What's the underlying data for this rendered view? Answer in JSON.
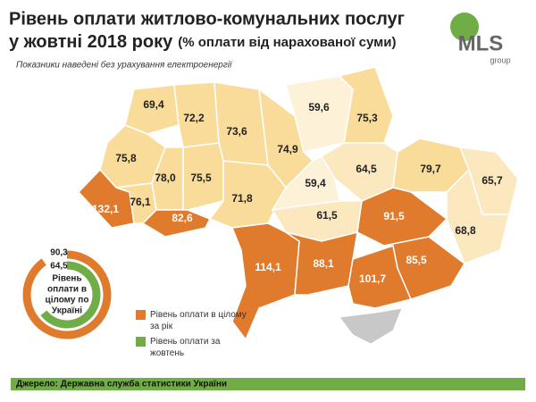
{
  "header": {
    "title_line1": "Рівень оплати житлово-комунальних послуг",
    "title_line2": "у жовтні 2018 року",
    "title_unit": "(% оплати від нарахованої суми)",
    "note": "Показники наведені без урахування електроенергії"
  },
  "logo": {
    "name": "MLS",
    "sub": "group"
  },
  "regions": [
    {
      "label": "69,4",
      "color": "#f9dc9a"
    },
    {
      "label": "72,2",
      "color": "#f9dc9a"
    },
    {
      "label": "73,6",
      "color": "#f9dc9a"
    },
    {
      "label": "59,6",
      "color": "#fdf2d8"
    },
    {
      "label": "75,3",
      "color": "#f9dc9a"
    },
    {
      "label": "75,8",
      "color": "#f9dc9a"
    },
    {
      "label": "78,0",
      "color": "#f9dc9a"
    },
    {
      "label": "75,5",
      "color": "#f9dc9a"
    },
    {
      "label": "74,9",
      "color": "#f9dc9a"
    },
    {
      "label": "64,5",
      "color": "#fbe8bf"
    },
    {
      "label": "79,7",
      "color": "#f9dc9a"
    },
    {
      "label": "65,7",
      "color": "#fbe8bf"
    },
    {
      "label": "132,1",
      "color": "#e07a2c"
    },
    {
      "label": "76,1",
      "color": "#f9dc9a"
    },
    {
      "label": "82,6",
      "color": "#e07a2c"
    },
    {
      "label": "71,8",
      "color": "#f9dc9a"
    },
    {
      "label": "59,4",
      "color": "#fdf2d8"
    },
    {
      "label": "61,5",
      "color": "#fbe8bf"
    },
    {
      "label": "91,5",
      "color": "#e07a2c"
    },
    {
      "label": "68,8",
      "color": "#fbe8bf"
    },
    {
      "label": "114,1",
      "color": "#e07a2c"
    },
    {
      "label": "88,1",
      "color": "#e07a2c"
    },
    {
      "label": "101,7",
      "color": "#e07a2c"
    },
    {
      "label": "85,5",
      "color": "#e07a2c"
    }
  ],
  "chart_data": {
    "type": "donut",
    "center_lines": [
      "Рівень",
      "оплати в",
      "цілому по",
      "Україні"
    ],
    "series": [
      {
        "name": "Рівень оплати в цілому за рік",
        "color": "#e07a2c",
        "values": [
          90.3
        ],
        "value_labels": [
          "90,3"
        ]
      },
      {
        "name": "Рівень оплати за жовтень",
        "color": "#70ad47",
        "values": [
          64.5
        ],
        "value_labels": [
          "64,5"
        ]
      }
    ],
    "max": 100
  },
  "footer": {
    "source": "Джерело: Державна служба статистики України"
  }
}
